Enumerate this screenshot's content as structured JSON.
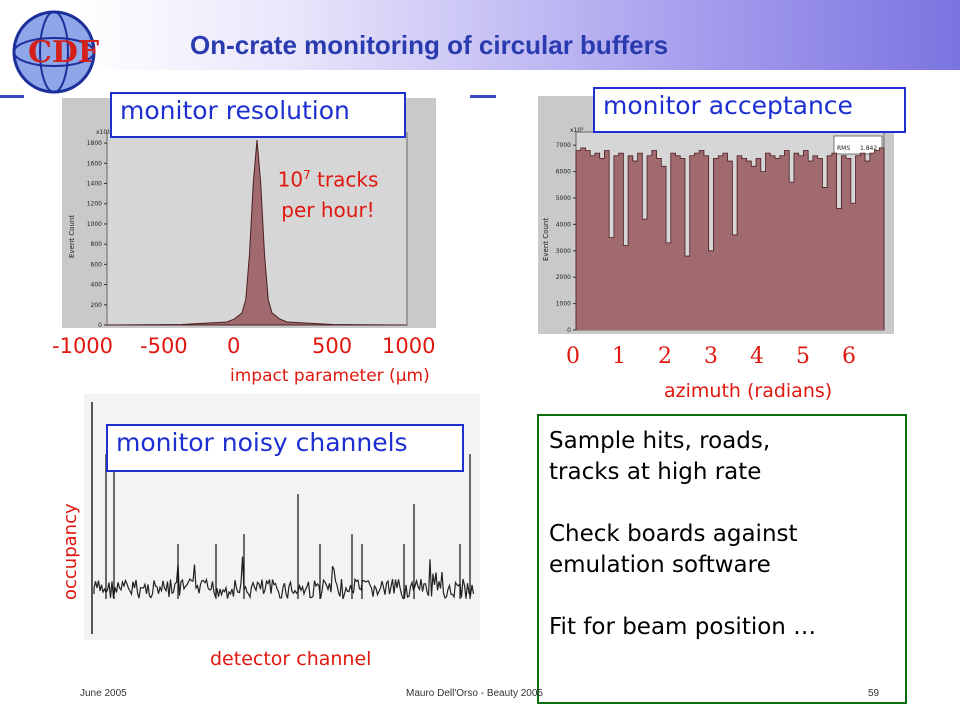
{
  "title": "On-crate monitoring of circular buffers",
  "logo": {
    "letters": "CDF"
  },
  "charts": {
    "resolution": {
      "callout": "monitor resolution",
      "annotation_line1_base": "10",
      "annotation_line1_exp": "7",
      "annotation_line1_rest": " tracks",
      "annotation_line2": "per hour!",
      "x_ticks": [
        "-1000",
        "-500",
        "0",
        "500",
        "1000"
      ],
      "x_label": "impact parameter (μm)",
      "y_label": "Event Count",
      "y_scale": "x10³",
      "y_ticks": [
        "0",
        "200",
        "400",
        "600",
        "800",
        "1000",
        "1200",
        "1400",
        "1600",
        "1800"
      ]
    },
    "acceptance": {
      "callout": "monitor acceptance",
      "x_ticks": [
        "0",
        "1",
        "2",
        "3",
        "4",
        "5",
        "6"
      ],
      "x_label": "azimuth (radians)",
      "y_label": "Event Count",
      "y_scale": "x10³",
      "y_ticks": [
        "0",
        "1000",
        "2000",
        "3000",
        "4000",
        "5000",
        "6000",
        "7000"
      ],
      "stats": [
        {
          "name": "RMS",
          "value": "1.842"
        }
      ]
    },
    "noisy": {
      "callout": "monitor noisy channels",
      "y_label": "occupancy",
      "x_label": "detector channel"
    }
  },
  "chart_data": [
    {
      "type": "area",
      "title": "",
      "xlabel": "impact parameter (μm)",
      "ylabel": "Event Count",
      "x": [
        -1000,
        -500,
        -200,
        -150,
        -100,
        -75,
        -50,
        -25,
        0,
        25,
        50,
        75,
        100,
        150,
        200,
        500,
        1000
      ],
      "y": [
        0,
        5,
        30,
        60,
        120,
        250,
        700,
        1400,
        1830,
        1400,
        700,
        250,
        120,
        60,
        30,
        5,
        0
      ],
      "xlim": [
        -1000,
        1000
      ],
      "ylim": [
        0,
        1900
      ]
    },
    {
      "type": "bar",
      "title": "",
      "xlabel": "azimuth (radians)",
      "ylabel": "Event Count",
      "values": [
        6800,
        6900,
        6800,
        6600,
        6700,
        6500,
        6800,
        3500,
        6600,
        6700,
        3200,
        6600,
        6400,
        6700,
        4200,
        6600,
        6800,
        6500,
        6200,
        3300,
        6700,
        6600,
        6500,
        2800,
        6600,
        6700,
        6800,
        6600,
        3000,
        6500,
        6600,
        6700,
        6400,
        3600,
        6600,
        6500,
        6400,
        6200,
        6500,
        6000,
        6700,
        6600,
        6500,
        6600,
        6800,
        5600,
        6700,
        6600,
        6800,
        6400,
        6600,
        6500,
        5400,
        6600,
        6700,
        4600,
        6600,
        6500,
        4800,
        6600,
        6700,
        6400,
        6700,
        6800,
        6900
      ],
      "xlim": [
        0,
        6.28
      ],
      "ylim": [
        0,
        7500
      ]
    }
  ],
  "info_box": {
    "lines": [
      "Sample hits, roads,",
      "tracks at high rate",
      "",
      "Check boards against",
      "emulation software",
      "",
      "Fit for beam position …"
    ]
  },
  "footer": {
    "date": "June 2005",
    "author": "Mauro Dell'Orso - Beauty 2005",
    "page": "59"
  }
}
